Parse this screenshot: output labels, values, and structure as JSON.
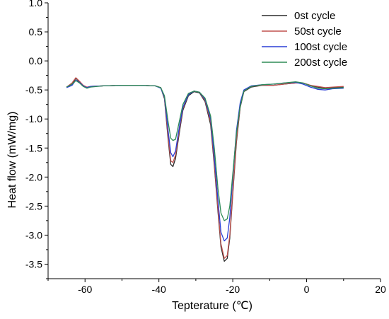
{
  "chart_data": {
    "type": "line",
    "title": "",
    "xlabel": "Tepterature (℃)",
    "ylabel": "Heat flow (mW/mg)",
    "xlim": [
      -70,
      20
    ],
    "ylim": [
      -3.75,
      1.0
    ],
    "xticks": [
      -60,
      -40,
      -20,
      0,
      20
    ],
    "yticks": [
      1.0,
      0.5,
      0.0,
      -0.5,
      -1.0,
      -1.5,
      -2.0,
      -2.5,
      -3.0,
      -3.5
    ],
    "xtick_labels": [
      "-60",
      "-40",
      "-20",
      "0",
      "20"
    ],
    "ytick_labels": [
      "1.0",
      "0.5",
      "0.0",
      "-0.5",
      "-1.0",
      "-1.5",
      "-2.0",
      "-2.5",
      "-3.0",
      "-3.5"
    ],
    "grid": false,
    "legend_position": "top-right",
    "series": [
      {
        "name": "0st cycle",
        "color": "#2b2b2b",
        "points": [
          [
            -65,
            -0.45
          ],
          [
            -63.5,
            -0.4
          ],
          [
            -62.5,
            -0.3
          ],
          [
            -61.5,
            -0.36
          ],
          [
            -60.5,
            -0.43
          ],
          [
            -59.5,
            -0.46
          ],
          [
            -58.5,
            -0.44
          ],
          [
            -55,
            -0.43
          ],
          [
            -50,
            -0.42
          ],
          [
            -45,
            -0.42
          ],
          [
            -41,
            -0.43
          ],
          [
            -39.5,
            -0.46
          ],
          [
            -38.5,
            -0.65
          ],
          [
            -37.5,
            -1.35
          ],
          [
            -36.8,
            -1.78
          ],
          [
            -36.2,
            -1.82
          ],
          [
            -35.5,
            -1.68
          ],
          [
            -34.5,
            -1.25
          ],
          [
            -33.5,
            -0.85
          ],
          [
            -32,
            -0.6
          ],
          [
            -30.5,
            -0.53
          ],
          [
            -29,
            -0.55
          ],
          [
            -27.5,
            -0.7
          ],
          [
            -26,
            -1.1
          ],
          [
            -25,
            -1.8
          ],
          [
            -24,
            -2.6
          ],
          [
            -23.2,
            -3.2
          ],
          [
            -22.3,
            -3.45
          ],
          [
            -21.5,
            -3.4
          ],
          [
            -20.8,
            -3.05
          ],
          [
            -20,
            -2.3
          ],
          [
            -19,
            -1.4
          ],
          [
            -18,
            -0.8
          ],
          [
            -17,
            -0.53
          ],
          [
            -15,
            -0.45
          ],
          [
            -12,
            -0.42
          ],
          [
            -9,
            -0.42
          ],
          [
            -6,
            -0.4
          ],
          [
            -3,
            -0.38
          ],
          [
            -1,
            -0.38
          ],
          [
            1,
            -0.42
          ],
          [
            3,
            -0.45
          ],
          [
            5,
            -0.47
          ],
          [
            7,
            -0.46
          ],
          [
            10,
            -0.45
          ]
        ]
      },
      {
        "name": "50st cycle",
        "color": "#c0504d",
        "points": [
          [
            -65,
            -0.45
          ],
          [
            -63.5,
            -0.38
          ],
          [
            -62.5,
            -0.29
          ],
          [
            -61.5,
            -0.35
          ],
          [
            -60.5,
            -0.42
          ],
          [
            -59.5,
            -0.45
          ],
          [
            -58.5,
            -0.44
          ],
          [
            -55,
            -0.43
          ],
          [
            -50,
            -0.42
          ],
          [
            -45,
            -0.42
          ],
          [
            -41,
            -0.43
          ],
          [
            -39.5,
            -0.46
          ],
          [
            -38.5,
            -0.63
          ],
          [
            -37.5,
            -1.3
          ],
          [
            -36.8,
            -1.72
          ],
          [
            -36.2,
            -1.75
          ],
          [
            -35.5,
            -1.62
          ],
          [
            -34.5,
            -1.2
          ],
          [
            -33.5,
            -0.82
          ],
          [
            -32,
            -0.58
          ],
          [
            -30.5,
            -0.52
          ],
          [
            -29,
            -0.54
          ],
          [
            -27.5,
            -0.68
          ],
          [
            -26,
            -1.05
          ],
          [
            -25,
            -1.75
          ],
          [
            -24,
            -2.55
          ],
          [
            -23.2,
            -3.15
          ],
          [
            -22.3,
            -3.4
          ],
          [
            -21.5,
            -3.35
          ],
          [
            -20.8,
            -3.0
          ],
          [
            -20,
            -2.25
          ],
          [
            -19,
            -1.35
          ],
          [
            -18,
            -0.78
          ],
          [
            -17,
            -0.52
          ],
          [
            -15,
            -0.44
          ],
          [
            -12,
            -0.42
          ],
          [
            -9,
            -0.42
          ],
          [
            -6,
            -0.4
          ],
          [
            -3,
            -0.38
          ],
          [
            -1,
            -0.38
          ],
          [
            1,
            -0.42
          ],
          [
            3,
            -0.44
          ],
          [
            5,
            -0.46
          ],
          [
            7,
            -0.45
          ],
          [
            10,
            -0.44
          ]
        ]
      },
      {
        "name": "100st cycle",
        "color": "#2b3fd6",
        "points": [
          [
            -65,
            -0.46
          ],
          [
            -63.5,
            -0.42
          ],
          [
            -62.5,
            -0.33
          ],
          [
            -61.5,
            -0.37
          ],
          [
            -60.5,
            -0.43
          ],
          [
            -59.5,
            -0.46
          ],
          [
            -58.5,
            -0.44
          ],
          [
            -55,
            -0.43
          ],
          [
            -50,
            -0.42
          ],
          [
            -45,
            -0.42
          ],
          [
            -41,
            -0.43
          ],
          [
            -39.5,
            -0.47
          ],
          [
            -38.5,
            -0.62
          ],
          [
            -37.5,
            -1.2
          ],
          [
            -36.8,
            -1.58
          ],
          [
            -36.2,
            -1.65
          ],
          [
            -35.5,
            -1.55
          ],
          [
            -34.5,
            -1.15
          ],
          [
            -33.5,
            -0.8
          ],
          [
            -32,
            -0.58
          ],
          [
            -30.5,
            -0.52
          ],
          [
            -29,
            -0.54
          ],
          [
            -27.5,
            -0.66
          ],
          [
            -26,
            -1.0
          ],
          [
            -25,
            -1.65
          ],
          [
            -24,
            -2.4
          ],
          [
            -23.2,
            -2.95
          ],
          [
            -22.3,
            -3.1
          ],
          [
            -21.5,
            -3.05
          ],
          [
            -20.8,
            -2.7
          ],
          [
            -20,
            -2.0
          ],
          [
            -19,
            -1.2
          ],
          [
            -18,
            -0.72
          ],
          [
            -17,
            -0.5
          ],
          [
            -15,
            -0.43
          ],
          [
            -12,
            -0.41
          ],
          [
            -9,
            -0.4
          ],
          [
            -6,
            -0.38
          ],
          [
            -3,
            -0.37
          ],
          [
            -1,
            -0.4
          ],
          [
            1,
            -0.45
          ],
          [
            3,
            -0.49
          ],
          [
            5,
            -0.5
          ],
          [
            7,
            -0.48
          ],
          [
            10,
            -0.47
          ]
        ]
      },
      {
        "name": "200st cycle",
        "color": "#2e8b57",
        "points": [
          [
            -65,
            -0.45
          ],
          [
            -63.5,
            -0.4
          ],
          [
            -62.5,
            -0.34
          ],
          [
            -61.5,
            -0.38
          ],
          [
            -60.5,
            -0.44
          ],
          [
            -59.5,
            -0.47
          ],
          [
            -58.5,
            -0.45
          ],
          [
            -55,
            -0.43
          ],
          [
            -50,
            -0.42
          ],
          [
            -45,
            -0.42
          ],
          [
            -41,
            -0.43
          ],
          [
            -39.5,
            -0.46
          ],
          [
            -38.5,
            -0.6
          ],
          [
            -37.5,
            -1.05
          ],
          [
            -36.8,
            -1.33
          ],
          [
            -36.2,
            -1.37
          ],
          [
            -35.5,
            -1.35
          ],
          [
            -34.5,
            -1.05
          ],
          [
            -33.5,
            -0.75
          ],
          [
            -32,
            -0.56
          ],
          [
            -30.5,
            -0.52
          ],
          [
            -29,
            -0.54
          ],
          [
            -27.5,
            -0.64
          ],
          [
            -26,
            -0.95
          ],
          [
            -25,
            -1.5
          ],
          [
            -24,
            -2.2
          ],
          [
            -23.2,
            -2.62
          ],
          [
            -22.3,
            -2.75
          ],
          [
            -21.5,
            -2.72
          ],
          [
            -20.8,
            -2.5
          ],
          [
            -20,
            -1.95
          ],
          [
            -19,
            -1.25
          ],
          [
            -18,
            -0.78
          ],
          [
            -17,
            -0.52
          ],
          [
            -15,
            -0.44
          ],
          [
            -12,
            -0.41
          ],
          [
            -9,
            -0.4
          ],
          [
            -6,
            -0.38
          ],
          [
            -3,
            -0.36
          ],
          [
            -1,
            -0.38
          ],
          [
            1,
            -0.43
          ],
          [
            3,
            -0.47
          ],
          [
            5,
            -0.48
          ],
          [
            7,
            -0.47
          ],
          [
            10,
            -0.46
          ]
        ]
      }
    ]
  }
}
